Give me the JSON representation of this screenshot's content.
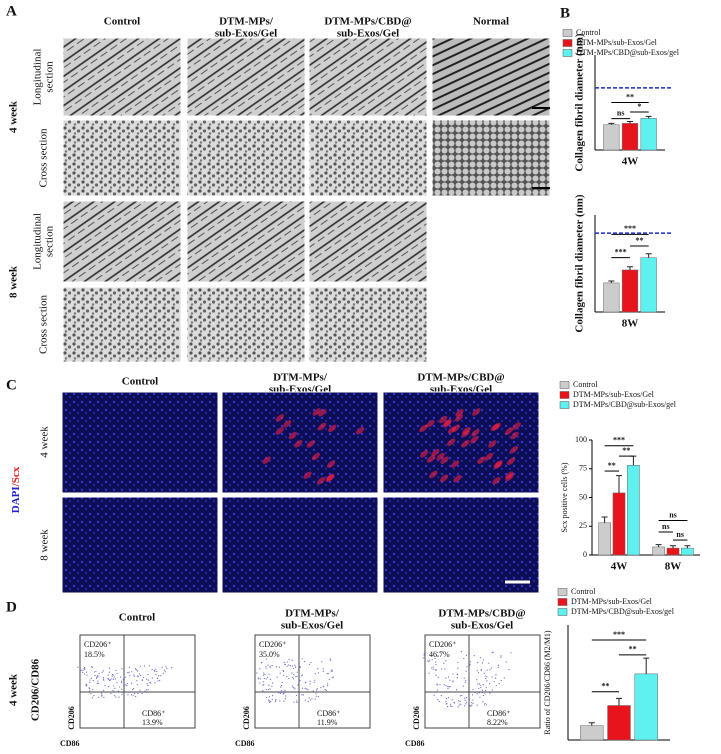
{
  "panel_labels": [
    "A",
    "B",
    "C",
    "D"
  ],
  "panel_a": {
    "columns": [
      [
        "Control"
      ],
      [
        "DTM-MPs/",
        "sub-Exos/Gel"
      ],
      [
        "DTM-MPs/CBD@",
        "sub-Exos/Gel"
      ],
      [
        "Normal"
      ]
    ],
    "groups": [
      "4 week",
      "8 week"
    ],
    "rows": [
      [
        "Longitudinal",
        "section"
      ],
      [
        "Cross section"
      ]
    ]
  },
  "panel_c": {
    "columns": [
      [
        "Control"
      ],
      [
        "DTM-MPs/",
        "sub-Exos/Gel"
      ],
      [
        "DTM-MPs/CBD@",
        "sub-Exos/Gel"
      ]
    ],
    "rows": [
      "4 week",
      "8 week"
    ],
    "stain": [
      "DAPI",
      "/Scx"
    ]
  },
  "panel_d": {
    "columns": [
      [
        "Control"
      ],
      [
        "DTM-MPs/",
        "sub-Exos/Gel"
      ],
      [
        "DTM-MPs/CBD@",
        "sub-Exos/Gel"
      ]
    ],
    "row": "4 week",
    "y_title": "CD206/CD86",
    "plot_y_axis": "CD206",
    "plot_x_axis": "CD86",
    "plots": [
      {
        "upper_label": "CD206⁺",
        "upper_value": "18.5%",
        "lower_label": "CD86⁺",
        "lower_value": "13.9%"
      },
      {
        "upper_label": "CD206⁺",
        "upper_value": "35.0%",
        "lower_label": "CD86⁺",
        "lower_value": "11.9%"
      },
      {
        "upper_label": "CD206⁺",
        "upper_value": "46.7%",
        "lower_label": "CD86⁺",
        "lower_value": "8.22%"
      }
    ]
  },
  "chart_data": [
    {
      "type": "bar",
      "y_label": "Collagen fibril diameter (nm)",
      "categories": [
        "4W"
      ],
      "ylim": [
        0,
        150
      ],
      "reference_line": 98,
      "series": [
        {
          "name": "Control",
          "color": "#cccccc",
          "values": [
            40
          ],
          "errors": [
            2
          ]
        },
        {
          "name": "DTM-MPs/sub-Exos/Gel",
          "color": "#e8141c",
          "values": [
            42
          ],
          "errors": [
            3
          ]
        },
        {
          "name": "DTM-MPs/CBD@sub-Exos/gel",
          "color": "#5ff0f0",
          "values": [
            50
          ],
          "errors": [
            3
          ]
        }
      ],
      "annotations": [
        "**",
        "ns",
        "*"
      ]
    },
    {
      "type": "bar",
      "y_label": "Collagen fibril diameter (nm)",
      "categories": [
        "8W"
      ],
      "ylim": [
        0,
        150
      ],
      "reference_line": 122,
      "series": [
        {
          "color": "#cccccc",
          "values": [
            45
          ],
          "errors": [
            3
          ]
        },
        {
          "color": "#e8141c",
          "values": [
            65
          ],
          "errors": [
            5
          ]
        },
        {
          "color": "#5ff0f0",
          "values": [
            84
          ],
          "errors": [
            6
          ]
        }
      ],
      "annotations": [
        "***",
        "***",
        "**"
      ]
    },
    {
      "type": "bar",
      "y_label": "Scx positive cells (%)",
      "categories": [
        "4W",
        "8W"
      ],
      "ylim": [
        0,
        100
      ],
      "yticks": [
        0,
        25,
        50,
        75,
        100
      ],
      "series": [
        {
          "name": "Control",
          "color": "#cccccc",
          "values": [
            28,
            7
          ],
          "errors": [
            5,
            2
          ]
        },
        {
          "name": "DTM-MPs/sub-Exos/Gel",
          "color": "#e8141c",
          "values": [
            54,
            6
          ],
          "errors": [
            15,
            2
          ]
        },
        {
          "name": "DTM-MPs/CBD@sub-Exos/gel",
          "color": "#5ff0f0",
          "values": [
            78,
            6
          ],
          "errors": [
            8,
            2
          ]
        }
      ],
      "annotations": [
        "***",
        "**",
        "**",
        "ns",
        "ns",
        "ns"
      ]
    },
    {
      "type": "bar",
      "y_label": "Ratio of CD206/CD86 (M2/M1)",
      "categories": [
        null
      ],
      "ylim": [
        0,
        8
      ],
      "series": [
        {
          "name": "Control",
          "color": "#cccccc",
          "values": [
            1.0
          ],
          "errors": [
            0.2
          ]
        },
        {
          "name": "DTM-MPs/sub-Exos/Gel",
          "color": "#e8141c",
          "values": [
            2.4
          ],
          "errors": [
            0.5
          ]
        },
        {
          "name": "DTM-MPs/CBD@sub-Exos/gel",
          "color": "#5ff0f0",
          "values": [
            4.6
          ],
          "errors": [
            1.1
          ]
        }
      ],
      "annotations": [
        "***",
        "**",
        "**"
      ]
    }
  ]
}
